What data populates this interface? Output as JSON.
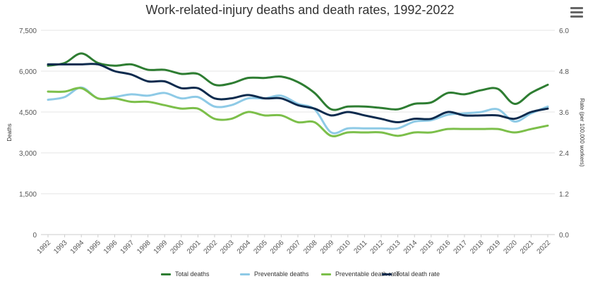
{
  "chart_data": {
    "type": "line",
    "title": "Work-related-injury deaths and death rates, 1992-2022",
    "x": [
      "1992",
      "1993",
      "1994",
      "1995",
      "1996",
      "1997",
      "1998",
      "1999",
      "2000",
      "2001",
      "2002",
      "2003",
      "2004",
      "2005",
      "2006",
      "2007",
      "2008",
      "2009",
      "2010",
      "2011",
      "2012",
      "2013",
      "2014",
      "2015",
      "2016",
      "2017",
      "2018",
      "2019",
      "2020",
      "2021",
      "2022"
    ],
    "ylabel_left": "Deaths",
    "ylabel_right": "Rate (per 100,000 workers)",
    "ylim_left": [
      0,
      7500
    ],
    "ylim_right": [
      0,
      6.0
    ],
    "yticks_left": [
      "0",
      "1,500",
      "3,000",
      "4,500",
      "6,000",
      "7,500"
    ],
    "yticks_right": [
      "0.0",
      "1.2",
      "2.4",
      "3.6",
      "4.8",
      "6.0"
    ],
    "grid": "horizontal",
    "legend_position": "bottom",
    "series": [
      {
        "name": "Total deaths",
        "axis": "left",
        "color": "#2e7d32",
        "values": [
          6200,
          6300,
          6650,
          6300,
          6200,
          6250,
          6050,
          6050,
          5900,
          5900,
          5500,
          5550,
          5750,
          5750,
          5800,
          5600,
          5200,
          4600,
          4700,
          4700,
          4650,
          4600,
          4800,
          4850,
          5200,
          5150,
          5300,
          5350,
          4800,
          5200,
          5500
        ]
      },
      {
        "name": "Preventable deaths",
        "axis": "left",
        "color": "#8ecae6",
        "values": [
          4950,
          5050,
          5400,
          5000,
          5050,
          5150,
          5100,
          5200,
          5000,
          5050,
          4700,
          4750,
          5000,
          5000,
          5100,
          4800,
          4600,
          3750,
          3900,
          3900,
          3900,
          3900,
          4150,
          4200,
          4400,
          4450,
          4500,
          4600,
          4150,
          4450,
          4700
        ]
      },
      {
        "name": "Preventable death rate",
        "axis": "right",
        "color": "#7cbf4a",
        "values": [
          4.2,
          4.2,
          4.3,
          4.0,
          4.0,
          3.9,
          3.9,
          3.8,
          3.7,
          3.7,
          3.4,
          3.4,
          3.6,
          3.5,
          3.5,
          3.3,
          3.3,
          2.9,
          3.0,
          3.0,
          3.0,
          2.9,
          3.0,
          3.0,
          3.1,
          3.1,
          3.1,
          3.1,
          3.0,
          3.1,
          3.2
        ]
      },
      {
        "name": "Total death rate",
        "axis": "right",
        "color": "#0d2b4e",
        "values": [
          5.0,
          5.0,
          5.0,
          5.0,
          4.8,
          4.7,
          4.5,
          4.5,
          4.3,
          4.3,
          4.0,
          4.0,
          4.1,
          4.0,
          4.0,
          3.8,
          3.7,
          3.5,
          3.6,
          3.5,
          3.4,
          3.3,
          3.4,
          3.4,
          3.6,
          3.5,
          3.5,
          3.5,
          3.4,
          3.6,
          3.7
        ]
      }
    ]
  },
  "menu": {
    "icon": "hamburger-menu-icon"
  }
}
